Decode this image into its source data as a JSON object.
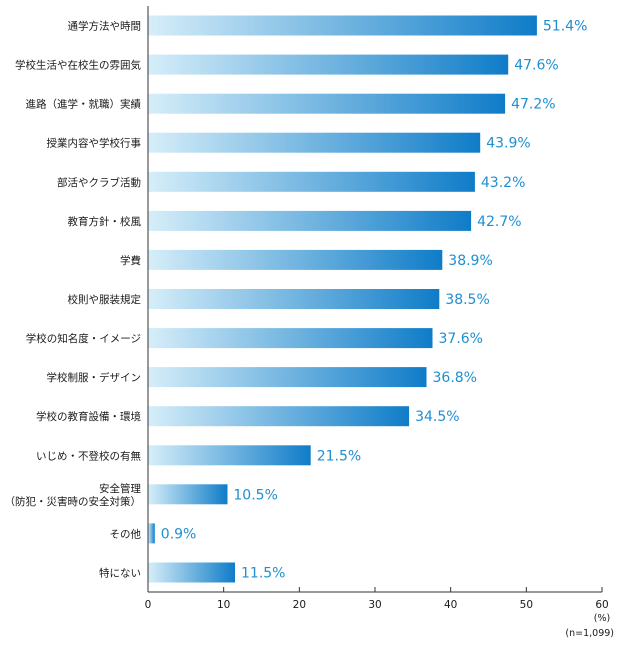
{
  "chart_data": {
    "type": "bar",
    "orientation": "horizontal",
    "categories": [
      "通学方法や時間",
      "学校生活や在校生の雰囲気",
      "進路（進学・就職）実績",
      "授業内容や学校行事",
      "部活やクラブ活動",
      "教育方針・校風",
      "学費",
      "校則や服装規定",
      "学校の知名度・イメージ",
      "学校制服・デザイン",
      "学校の教育設備・環境",
      "いじめ・不登校の有無",
      "安全管理\n（防犯・災害時の安全対策）",
      "その他",
      "特にない"
    ],
    "values": [
      51.4,
      47.6,
      47.2,
      43.9,
      43.2,
      42.7,
      38.9,
      38.5,
      37.6,
      36.8,
      34.5,
      21.5,
      10.5,
      0.9,
      11.5
    ],
    "value_labels": [
      "51.4%",
      "47.6%",
      "47.2%",
      "43.9%",
      "43.2%",
      "42.7%",
      "38.9%",
      "38.5%",
      "37.6%",
      "36.8%",
      "34.5%",
      "21.5%",
      "10.5%",
      "0.9%",
      "11.5%"
    ],
    "x_ticks": [
      "0",
      "10",
      "20",
      "30",
      "40",
      "50",
      "60"
    ],
    "xlim": [
      0,
      60
    ],
    "xlabel": "(%)",
    "note": "(n=1,099)",
    "grid": false,
    "colors": {
      "bar_start": "#d6eef9",
      "bar_end": "#0f7cc8",
      "value_text": "#1f8fd0",
      "axis": "#333333"
    }
  }
}
